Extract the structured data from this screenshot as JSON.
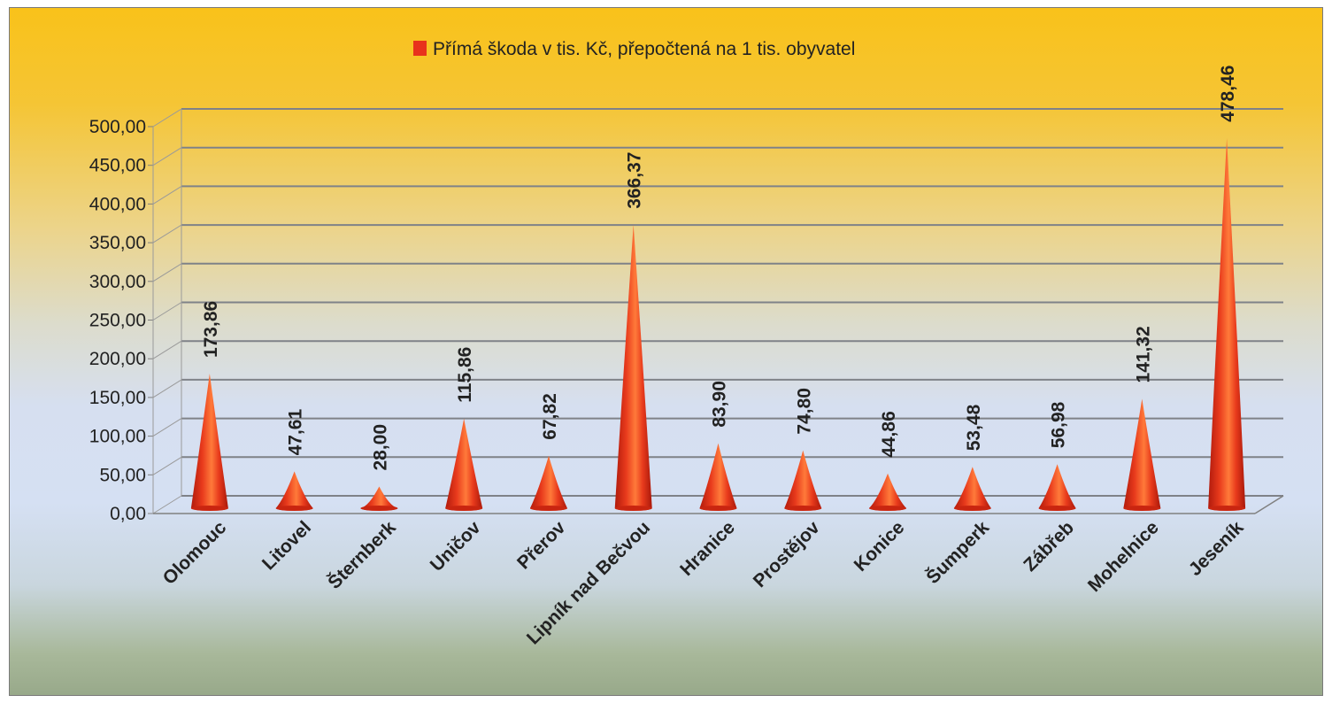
{
  "chart_data": {
    "type": "bar",
    "title": "",
    "xlabel": "",
    "ylabel": "",
    "legend": {
      "position": "top-center",
      "entries": [
        {
          "name": "Přímá škoda v tis.  Kč, přepočtená na 1 tis. obyvatel",
          "color": "#e8321c"
        }
      ]
    },
    "ylim": [
      0,
      500
    ],
    "y_ticks": [
      "0,00",
      "50,00",
      "100,00",
      "150,00",
      "200,00",
      "250,00",
      "300,00",
      "350,00",
      "400,00",
      "450,00",
      "500,00"
    ],
    "grid": true,
    "categories": [
      "Olomouc",
      "Litovel",
      "Šternberk",
      "Uničov",
      "Přerov",
      "Lipník nad Bečvou",
      "Hranice",
      "Prostějov",
      "Konice",
      "Šumperk",
      "Zábřeb",
      "Mohelnice",
      "Jeseník"
    ],
    "series": [
      {
        "name": "Přímá škoda v tis.  Kč, přepočtená na 1 tis. obyvatel",
        "values": [
          173.86,
          47.61,
          28.0,
          115.86,
          67.82,
          366.37,
          83.9,
          74.8,
          44.86,
          53.48,
          56.98,
          141.32,
          478.46
        ],
        "labels": [
          "173,86",
          "47,61",
          "28,00",
          "115,86",
          "67,82",
          "366,37",
          "83,90",
          "74,80",
          "44,86",
          "53,48",
          "56,98",
          "141,32",
          "478,46"
        ],
        "color": "#e8321c"
      }
    ]
  }
}
